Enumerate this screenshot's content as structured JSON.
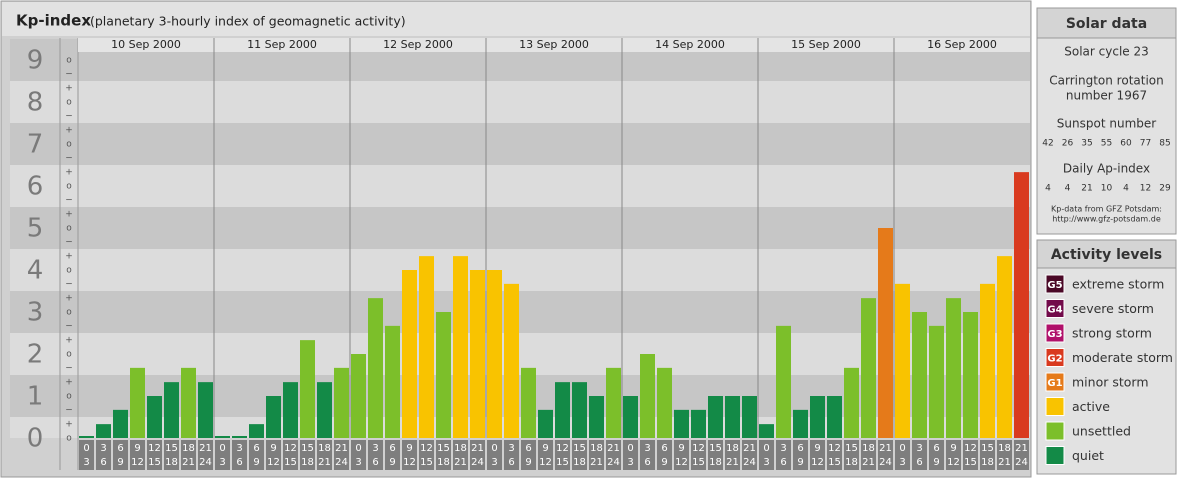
{
  "chart_data": {
    "type": "bar",
    "title": "Kp-index",
    "subtitle": "(planetary 3-hourly index of geomagnetic activity)",
    "days": [
      "10 Sep 2000",
      "11 Sep 2000",
      "12 Sep 2000",
      "13 Sep 2000",
      "14 Sep 2000",
      "15 Sep 2000",
      "16 Sep 2000"
    ],
    "hours": [
      0,
      3,
      6,
      9,
      12,
      15,
      18,
      21,
      24
    ],
    "ylim": [
      0,
      9.5
    ],
    "yticks": [
      0,
      1,
      2,
      3,
      4,
      5,
      6,
      7,
      8,
      9
    ],
    "subticks": [
      "−",
      "o",
      "+"
    ],
    "values": [
      0,
      0.33,
      0.67,
      1.67,
      1,
      1.33,
      1.67,
      1.33,
      0,
      0,
      0.33,
      1,
      1.33,
      2.33,
      1.33,
      1.67,
      2,
      3.33,
      2.67,
      4,
      4.33,
      3,
      4.33,
      4,
      4,
      3.67,
      1.67,
      0.67,
      1.33,
      1.33,
      1,
      1.67,
      1,
      2,
      1.67,
      0.67,
      0.67,
      1,
      1,
      1,
      0.33,
      2.67,
      0.67,
      1,
      1,
      1.67,
      3.33,
      5,
      3.67,
      3,
      2.67,
      3.33,
      3,
      3.67,
      4.33,
      6.33
    ],
    "colors": [
      "#138a47",
      "#138a47",
      "#138a47",
      "#7cbf2a",
      "#138a47",
      "#138a47",
      "#7cbf2a",
      "#138a47",
      "#138a47",
      "#138a47",
      "#138a47",
      "#138a47",
      "#138a47",
      "#7cbf2a",
      "#138a47",
      "#7cbf2a",
      "#7cbf2a",
      "#7cbf2a",
      "#7cbf2a",
      "#f9c300",
      "#f9c300",
      "#7cbf2a",
      "#f9c300",
      "#f9c300",
      "#f9c300",
      "#f9c300",
      "#7cbf2a",
      "#138a47",
      "#138a47",
      "#138a47",
      "#138a47",
      "#7cbf2a",
      "#138a47",
      "#7cbf2a",
      "#7cbf2a",
      "#138a47",
      "#138a47",
      "#138a47",
      "#138a47",
      "#138a47",
      "#138a47",
      "#7cbf2a",
      "#138a47",
      "#138a47",
      "#138a47",
      "#7cbf2a",
      "#7cbf2a",
      "#e57a1a",
      "#f9c300",
      "#7cbf2a",
      "#7cbf2a",
      "#7cbf2a",
      "#7cbf2a",
      "#f9c300",
      "#f9c300",
      "#d93a1f"
    ],
    "solar": {
      "title": "Solar data",
      "cycle": "Solar cycle 23",
      "carrington": [
        "Carrington rotation",
        "number 1967"
      ],
      "sunspot_label": "Sunspot number",
      "sunspot": [
        42,
        26,
        35,
        55,
        60,
        77,
        85
      ],
      "ap_label": "Daily Ap-index",
      "ap": [
        4,
        4,
        21,
        10,
        4,
        12,
        29
      ],
      "source": "Kp-data from GFZ Potsdam:",
      "url": "http://www.gfz-potsdam.de"
    },
    "legend": {
      "title": "Activity levels",
      "items": [
        {
          "code": "G5",
          "name": "extreme storm",
          "color": "#4a0826"
        },
        {
          "code": "G4",
          "name": "severe storm",
          "color": "#720a4a"
        },
        {
          "code": "G3",
          "name": "strong storm",
          "color": "#b0106a"
        },
        {
          "code": "G2",
          "name": "moderate storm",
          "color": "#d93a1f"
        },
        {
          "code": "G1",
          "name": "minor storm",
          "color": "#e57a1a"
        },
        {
          "name": "active",
          "color": "#f9c300"
        },
        {
          "name": "unsettled",
          "color": "#7cbf2a"
        },
        {
          "name": "quiet",
          "color": "#138a47"
        }
      ]
    }
  }
}
